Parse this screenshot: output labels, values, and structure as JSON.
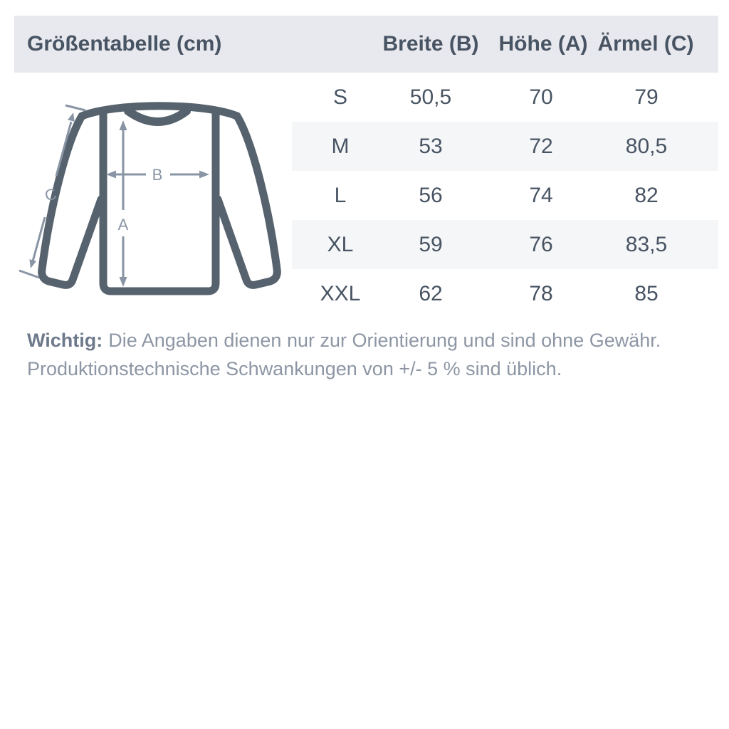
{
  "header": {
    "title": "Größentabelle (cm)",
    "columns": [
      "Breite (B)",
      "Höhe (A)",
      "Ärmel (C)"
    ]
  },
  "table": {
    "rows": [
      {
        "size": "S",
        "breite": "50,5",
        "hoehe": "70",
        "aermel": "79"
      },
      {
        "size": "M",
        "breite": "53",
        "hoehe": "72",
        "aermel": "80,5"
      },
      {
        "size": "L",
        "breite": "56",
        "hoehe": "74",
        "aermel": "82"
      },
      {
        "size": "XL",
        "breite": "59",
        "hoehe": "76",
        "aermel": "83,5"
      },
      {
        "size": "XXL",
        "breite": "62",
        "hoehe": "78",
        "aermel": "85"
      }
    ]
  },
  "chart_data": {
    "type": "table",
    "columns": [
      "",
      "Breite (B)",
      "Höhe (A)",
      "Ärmel (C)"
    ],
    "rows": [
      [
        "S",
        "50,5",
        "70",
        "79"
      ],
      [
        "M",
        "53",
        "72",
        "80,5"
      ],
      [
        "L",
        "56",
        "74",
        "82"
      ],
      [
        "XL",
        "59",
        "76",
        "83,5"
      ],
      [
        "XXL",
        "62",
        "78",
        "85"
      ]
    ],
    "title": "Größentabelle (cm)"
  },
  "diagram": {
    "labels": {
      "height": "A",
      "width": "B",
      "sleeve": "C"
    }
  },
  "note": {
    "label": "Wichtig:",
    "line1": "Die Angaben dienen nur zur Orientierung und sind ohne Gewähr.",
    "line2": "Produktionstechnische Schwankungen von +/- 5 % sind üblich."
  },
  "colors": {
    "header_bg": "#e8e9ee",
    "row_stripe_bg": "#f5f6f8",
    "text_dark": "#485463",
    "note_text": "#8d96a4",
    "note_label_text": "#6e7a8c",
    "illustration_outline": "#56626d",
    "measurement_arrows": "#8995a5"
  }
}
